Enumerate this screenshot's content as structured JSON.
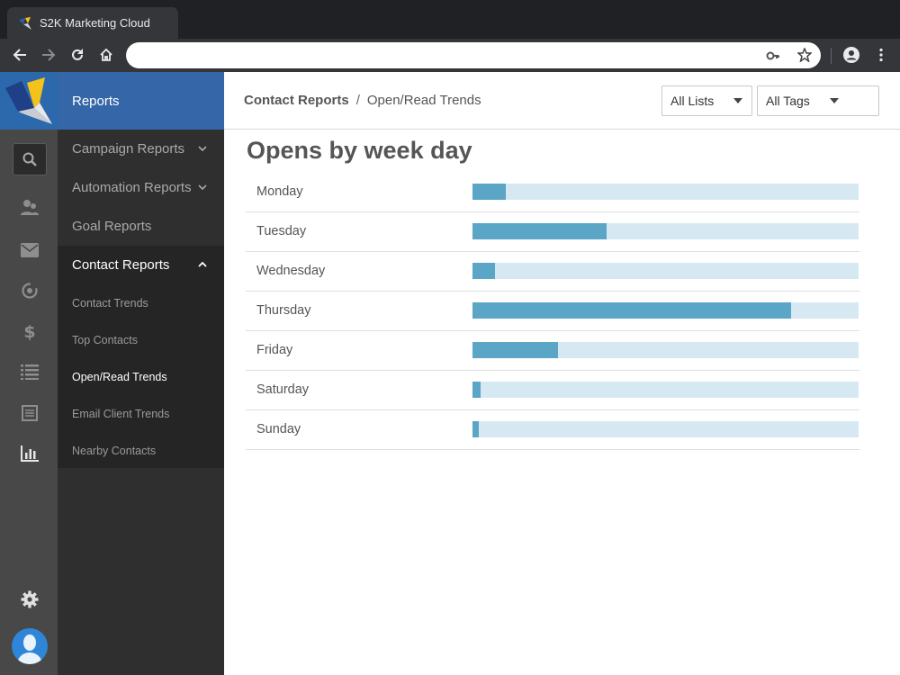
{
  "browser": {
    "tab_title": "S2K Marketing Cloud",
    "address": ""
  },
  "rail": {
    "icons": [
      "search-icon",
      "contacts-icon",
      "mail-icon",
      "automation-icon",
      "dollar-icon",
      "list-icon",
      "forms-icon",
      "reports-icon",
      "gear-icon",
      "avatar"
    ]
  },
  "subnav": {
    "header": "Reports",
    "sections": [
      {
        "label": "Campaign Reports",
        "expanded": false
      },
      {
        "label": "Automation Reports",
        "expanded": false
      },
      {
        "label": "Goal Reports"
      },
      {
        "label": "Contact Reports",
        "expanded": true
      }
    ],
    "contact_items": [
      "Contact Trends",
      "Top Contacts",
      "Open/Read Trends",
      "Email Client Trends",
      "Nearby Contacts"
    ],
    "active_item": "Open/Read Trends"
  },
  "topbar": {
    "breadcrumb_parent": "Contact Reports",
    "breadcrumb_sep": "/",
    "breadcrumb_current": "Open/Read Trends",
    "lists_filter": "All Lists",
    "tags_filter": "All Tags"
  },
  "main": {
    "title": "Opens by week day"
  },
  "colors": {
    "bar_fill": "#5ba5c6",
    "bar_track": "#d6e9f2",
    "nav_header": "#3567a8"
  },
  "chart_data": {
    "type": "bar",
    "orientation": "horizontal",
    "categories": [
      "Monday",
      "Tuesday",
      "Wednesday",
      "Thursday",
      "Friday",
      "Saturday",
      "Sunday"
    ],
    "values": [
      0.086,
      0.348,
      0.058,
      0.825,
      0.222,
      0.021,
      0.016
    ],
    "value_scale": "fraction of full track",
    "title": "Opens by week day"
  }
}
